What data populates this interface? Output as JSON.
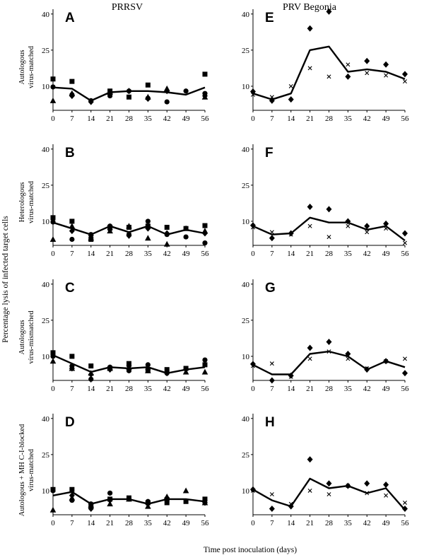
{
  "figure": {
    "columns": [
      "PRRSV",
      "PRV Begonia"
    ],
    "xlabel": "Time post inoculation (days)",
    "ylabel": "Percentage lysis of infected target cells",
    "row_labels": [
      [
        "Autologous",
        "virus-matched"
      ],
      [
        "Heterologous",
        "virus-matched"
      ],
      [
        "Autologous",
        "virus-mismatched"
      ],
      [
        "Autologous + MH C-I-blocked",
        "virus-matched"
      ]
    ]
  },
  "chart_data": [
    {
      "id": "A",
      "type": "line",
      "ylim": [
        0,
        42
      ],
      "yticks": [
        10,
        25,
        40
      ],
      "x": [
        0,
        7,
        14,
        21,
        28,
        35,
        42,
        49,
        56
      ],
      "mean": [
        9.5,
        9,
        4,
        7.5,
        8,
        8,
        7.5,
        6.5,
        9.5
      ],
      "points": [
        {
          "shape": "square",
          "x": [
            0,
            7,
            21,
            28,
            35,
            56
          ],
          "y": [
            13,
            12,
            8,
            5.5,
            10.5,
            15
          ]
        },
        {
          "shape": "circle",
          "x": [
            0,
            7,
            14,
            21,
            28,
            35,
            42,
            49,
            56
          ],
          "y": [
            9.7,
            6.5,
            4,
            6,
            8,
            5,
            3.5,
            8,
            7
          ]
        },
        {
          "shape": "triangle",
          "x": [
            0,
            7,
            21,
            35,
            42,
            56
          ],
          "y": [
            4,
            7,
            7.5,
            5.5,
            9,
            5.5
          ]
        },
        {
          "shape": "diamond",
          "x": [
            7,
            14,
            21,
            28,
            35,
            42,
            56
          ],
          "y": [
            6,
            3.5,
            7,
            8,
            4.8,
            8,
            6
          ]
        }
      ]
    },
    {
      "id": "E",
      "type": "line",
      "ylim": [
        0,
        42
      ],
      "yticks": [
        10,
        25,
        40
      ],
      "x": [
        0,
        7,
        14,
        21,
        28,
        35,
        42,
        49,
        56
      ],
      "mean": [
        7,
        4.5,
        7,
        25,
        26.5,
        16,
        17,
        16,
        13
      ],
      "points": [
        {
          "shape": "diamond",
          "x": [
            0,
            7,
            14,
            21,
            28,
            35,
            42,
            49,
            56
          ],
          "y": [
            7.8,
            4,
            4.5,
            34,
            41,
            14,
            20.5,
            19,
            15
          ]
        },
        {
          "shape": "x",
          "x": [
            0,
            7,
            14,
            21,
            28,
            35,
            42,
            49,
            56
          ],
          "y": [
            6.5,
            5.5,
            10,
            17.5,
            14,
            19,
            15.5,
            14.5,
            12
          ]
        }
      ]
    },
    {
      "id": "B",
      "type": "line",
      "ylim": [
        0,
        42
      ],
      "yticks": [
        10,
        25,
        40
      ],
      "x": [
        0,
        7,
        14,
        21,
        28,
        35,
        42,
        49,
        56
      ],
      "mean": [
        9.5,
        7,
        4.5,
        8,
        5.5,
        8,
        4.5,
        6.5,
        5
      ],
      "points": [
        {
          "shape": "square",
          "x": [
            0,
            7,
            14,
            21,
            28,
            35,
            42,
            49,
            56
          ],
          "y": [
            11.5,
            10,
            2.5,
            7.5,
            7.5,
            8,
            7.5,
            7,
            8.2
          ]
        },
        {
          "shape": "circle",
          "x": [
            0,
            7,
            14,
            21,
            28,
            35,
            42,
            49,
            56
          ],
          "y": [
            9.7,
            2.5,
            4.5,
            8,
            4.5,
            10,
            4.5,
            3.5,
            1
          ]
        },
        {
          "shape": "triangle",
          "x": [
            0,
            7,
            14,
            21,
            28,
            35,
            42,
            49,
            56
          ],
          "y": [
            2.5,
            8,
            3,
            6,
            8,
            3,
            0.5,
            7,
            6
          ]
        },
        {
          "shape": "diamond",
          "x": [
            7,
            14,
            21,
            28,
            35,
            42,
            56
          ],
          "y": [
            6,
            4,
            6.5,
            4,
            7,
            5,
            5
          ]
        }
      ]
    },
    {
      "id": "F",
      "type": "line",
      "ylim": [
        0,
        42
      ],
      "yticks": [
        10,
        25,
        40
      ],
      "x": [
        0,
        7,
        14,
        21,
        28,
        35,
        42,
        49,
        56
      ],
      "mean": [
        8,
        4.5,
        5,
        11.5,
        9.5,
        9.5,
        6.5,
        8,
        2
      ],
      "points": [
        {
          "shape": "diamond",
          "x": [
            0,
            7,
            14,
            21,
            28,
            35,
            42,
            49,
            56
          ],
          "y": [
            8.3,
            3,
            5,
            16,
            15,
            10,
            8,
            9,
            5
          ]
        },
        {
          "shape": "x",
          "x": [
            0,
            7,
            14,
            21,
            28,
            35,
            42,
            49,
            56
          ],
          "y": [
            7.5,
            5.5,
            4.5,
            8,
            3.5,
            8,
            5.5,
            7,
            1
          ]
        }
      ]
    },
    {
      "id": "C",
      "type": "line",
      "ylim": [
        0,
        42
      ],
      "yticks": [
        10,
        25,
        40
      ],
      "x": [
        0,
        7,
        14,
        21,
        28,
        35,
        42,
        49,
        56
      ],
      "mean": [
        10.5,
        7,
        3.5,
        5.5,
        5,
        5.5,
        3,
        4.5,
        5.5
      ],
      "points": [
        {
          "shape": "square",
          "x": [
            0,
            7,
            14,
            21,
            28,
            35,
            42,
            49,
            56
          ],
          "y": [
            11.5,
            10,
            6,
            5,
            7,
            4.5,
            4.5,
            5,
            6.5
          ]
        },
        {
          "shape": "circle",
          "x": [
            0,
            7,
            14,
            21,
            28,
            35,
            42,
            56
          ],
          "y": [
            10,
            6,
            0.5,
            5.5,
            4,
            6.5,
            3,
            8.5
          ]
        },
        {
          "shape": "triangle",
          "x": [
            0,
            7,
            14,
            21,
            28,
            35,
            49,
            56
          ],
          "y": [
            8,
            5,
            3,
            5,
            5.5,
            4,
            3.5,
            3.5
          ]
        },
        {
          "shape": "diamond",
          "x": [
            7,
            14,
            21,
            28,
            35,
            42,
            49
          ],
          "y": [
            5,
            2.5,
            4.5,
            6,
            4.5,
            3,
            4.5
          ]
        }
      ]
    },
    {
      "id": "G",
      "type": "line",
      "ylim": [
        0,
        42
      ],
      "yticks": [
        10,
        25,
        40
      ],
      "x": [
        0,
        7,
        14,
        21,
        28,
        35,
        42,
        49,
        56
      ],
      "mean": [
        6.5,
        2.5,
        2.5,
        11,
        12,
        10,
        4.5,
        8,
        5.5
      ],
      "points": [
        {
          "shape": "diamond",
          "x": [
            0,
            7,
            14,
            21,
            28,
            35,
            42,
            49,
            56
          ],
          "y": [
            6.8,
            0,
            2,
            13.5,
            16,
            11,
            4.5,
            8,
            3
          ]
        },
        {
          "shape": "x",
          "x": [
            0,
            7,
            14,
            21,
            28,
            35,
            42,
            49,
            56
          ],
          "y": [
            6,
            7,
            1.5,
            9,
            12,
            9,
            5,
            8,
            9
          ]
        }
      ]
    },
    {
      "id": "D",
      "type": "line",
      "ylim": [
        0,
        42
      ],
      "yticks": [
        10,
        25,
        40
      ],
      "x": [
        0,
        7,
        14,
        21,
        28,
        35,
        42,
        49,
        56
      ],
      "mean": [
        8,
        9.5,
        4.5,
        6.5,
        6.5,
        4.5,
        6.5,
        6.5,
        5.5
      ],
      "points": [
        {
          "shape": "square",
          "x": [
            0,
            7,
            14,
            21,
            28,
            35,
            42,
            49,
            56
          ],
          "y": [
            10.5,
            10.5,
            3.5,
            6.5,
            7,
            5,
            5,
            5.5,
            6.5
          ]
        },
        {
          "shape": "circle",
          "x": [
            0,
            7,
            14,
            21,
            28,
            35,
            42,
            56
          ],
          "y": [
            10,
            6,
            4.5,
            9,
            6.5,
            5.5,
            6,
            6
          ]
        },
        {
          "shape": "triangle",
          "x": [
            0,
            7,
            14,
            21,
            28,
            35,
            42,
            49,
            56
          ],
          "y": [
            2,
            7,
            4,
            4.5,
            6.5,
            3.5,
            7.5,
            10,
            5
          ]
        },
        {
          "shape": "diamond",
          "x": [
            7,
            14,
            21,
            35,
            42,
            56
          ],
          "y": [
            8,
            2.5,
            6,
            4.5,
            7,
            5
          ]
        }
      ]
    },
    {
      "id": "H",
      "type": "line",
      "ylim": [
        0,
        42
      ],
      "yticks": [
        10,
        25,
        40
      ],
      "x": [
        0,
        7,
        14,
        21,
        28,
        35,
        42,
        49,
        56
      ],
      "mean": [
        10.5,
        6,
        3.5,
        15,
        11,
        12,
        9,
        11,
        2
      ],
      "points": [
        {
          "shape": "diamond",
          "x": [
            0,
            7,
            14,
            21,
            28,
            35,
            42,
            49,
            56
          ],
          "y": [
            10.5,
            2.5,
            3.5,
            23,
            13,
            12,
            13,
            12.5,
            2.5
          ]
        },
        {
          "shape": "x",
          "x": [
            0,
            7,
            14,
            21,
            28,
            35,
            42,
            49,
            56
          ],
          "y": [
            10,
            8.5,
            4.5,
            10,
            8.5,
            12,
            9,
            8,
            5
          ]
        }
      ]
    }
  ]
}
